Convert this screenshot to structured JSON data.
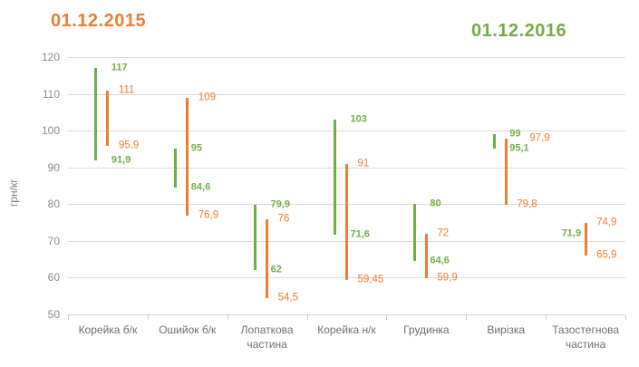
{
  "titles": {
    "series_2015": "01.12.2015",
    "series_2016": "01.12.2016"
  },
  "colors": {
    "orange_2015": "#ED7D31",
    "green_2016": "#70AD47",
    "axis_text": "#8a8a8a",
    "category_text": "#6e6e6e",
    "gridline": "#d9d9d9"
  },
  "chart_data": {
    "type": "range-bar",
    "title": "",
    "xlabel": "",
    "ylabel": "грн/кг",
    "ylim": [
      50,
      120
    ],
    "yticks": [
      50,
      60,
      70,
      80,
      90,
      100,
      110,
      120
    ],
    "grid": "horizontal",
    "legend_position": "titles-top",
    "categories": [
      "Корейка б/к",
      "Ошийок б/к",
      "Лопаткова частина",
      "Корейка н/к",
      "Грудинка",
      "Вирізка",
      "Тазостегнова частина"
    ],
    "series": [
      {
        "name": "01.12.2016",
        "color": "#70AD47",
        "points": [
          {
            "low": 91.9,
            "high": 117,
            "label_low": "91,9",
            "label_high": "117"
          },
          {
            "low": 84.6,
            "high": 95,
            "label_low": "84,6",
            "label_high": "95"
          },
          {
            "low": 62,
            "high": 79.9,
            "label_low": "62",
            "label_high": "79,9"
          },
          {
            "low": 71.6,
            "high": 103,
            "label_low": "71,6",
            "label_high": "103"
          },
          {
            "low": 64.6,
            "high": 80,
            "label_low": "64,6",
            "label_high": "80"
          },
          {
            "low": 95.1,
            "high": 99,
            "label_low": "95,1",
            "label_high": "99"
          },
          {
            "low": 71.9,
            "high": 71.9,
            "label_low": "",
            "label_high": "71,9"
          }
        ]
      },
      {
        "name": "01.12.2015",
        "color": "#ED7D31",
        "points": [
          {
            "low": 95.9,
            "high": 111,
            "label_low": "95,9",
            "label_high": "111"
          },
          {
            "low": 76.9,
            "high": 109,
            "label_low": "76,9",
            "label_high": "109"
          },
          {
            "low": 54.5,
            "high": 76,
            "label_low": "54,5",
            "label_high": "76"
          },
          {
            "low": 59.45,
            "high": 91,
            "label_low": "59,45",
            "label_high": "91"
          },
          {
            "low": 59.9,
            "high": 72,
            "label_low": "59,9",
            "label_high": "72"
          },
          {
            "low": 79.8,
            "high": 97.9,
            "label_low": "79,8",
            "label_high": "97,9"
          },
          {
            "low": 65.9,
            "high": 74.9,
            "label_low": "65,9",
            "label_high": "74,9"
          }
        ]
      }
    ]
  }
}
